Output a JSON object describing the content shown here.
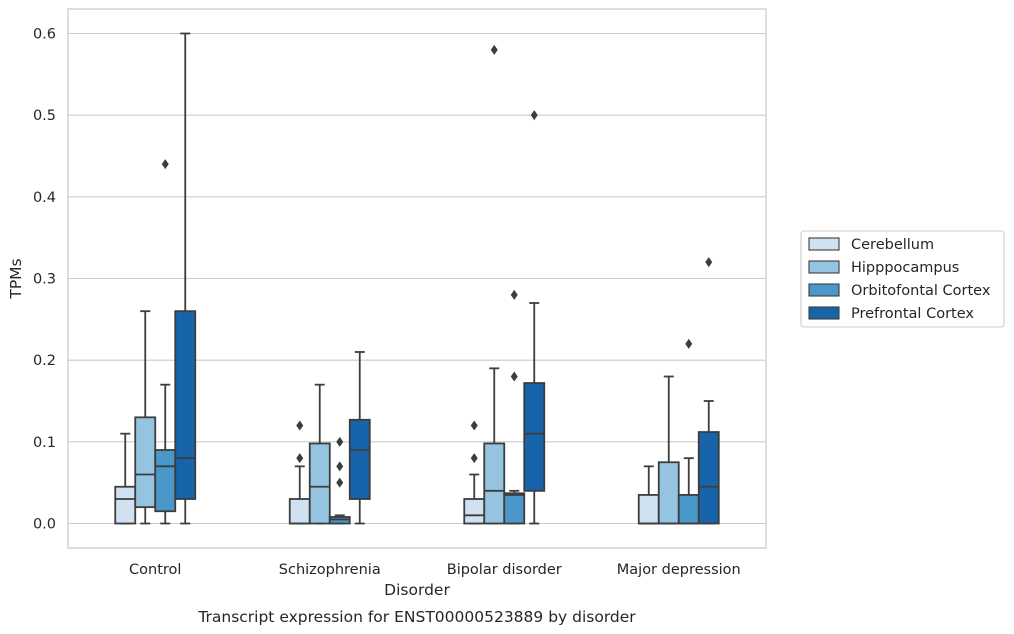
{
  "caption": "Transcript expression for ENST00000523889 by disorder",
  "chart_data": {
    "type": "box",
    "title": "",
    "xlabel": "Disorder",
    "ylabel": "TPMs",
    "ylim": [
      -0.03,
      0.63
    ],
    "yticks": [
      0.0,
      0.1,
      0.2,
      0.3,
      0.4,
      0.5,
      0.6
    ],
    "ytick_labels": [
      "0.0",
      "0.1",
      "0.2",
      "0.3",
      "0.4",
      "0.5",
      "0.6"
    ],
    "grid": true,
    "legend_position": "right",
    "categories": [
      "Control",
      "Schizophrenia",
      "Bipolar disorder",
      "Major depression"
    ],
    "series": [
      {
        "name": "Cerebellum",
        "color": "#d0e1f2",
        "boxes": [
          {
            "whislo": 0.0,
            "q1": 0.0,
            "med": 0.03,
            "q3": 0.045,
            "whishi": 0.11,
            "fliers": []
          },
          {
            "whislo": 0.0,
            "q1": 0.0,
            "med": 0.0,
            "q3": 0.03,
            "whishi": 0.07,
            "fliers": [
              0.08,
              0.12
            ]
          },
          {
            "whislo": 0.0,
            "q1": 0.0,
            "med": 0.01,
            "q3": 0.03,
            "whishi": 0.06,
            "fliers": [
              0.08,
              0.12
            ]
          },
          {
            "whislo": 0.0,
            "q1": 0.0,
            "med": 0.0,
            "q3": 0.035,
            "whishi": 0.07,
            "fliers": []
          }
        ]
      },
      {
        "name": "Hipppocampus",
        "color": "#94c4df",
        "boxes": [
          {
            "whislo": 0.0,
            "q1": 0.02,
            "med": 0.06,
            "q3": 0.13,
            "whishi": 0.26,
            "fliers": []
          },
          {
            "whislo": 0.0,
            "q1": 0.0,
            "med": 0.045,
            "q3": 0.098,
            "whishi": 0.17,
            "fliers": []
          },
          {
            "whislo": 0.0,
            "q1": 0.0,
            "med": 0.04,
            "q3": 0.098,
            "whishi": 0.19,
            "fliers": [
              0.58
            ]
          },
          {
            "whislo": 0.0,
            "q1": 0.0,
            "med": 0.0,
            "q3": 0.075,
            "whishi": 0.18,
            "fliers": []
          }
        ]
      },
      {
        "name": "Orbitofontal Cortex",
        "color": "#4a98c9",
        "boxes": [
          {
            "whislo": 0.0,
            "q1": 0.015,
            "med": 0.07,
            "q3": 0.09,
            "whishi": 0.17,
            "fliers": [
              0.44
            ]
          },
          {
            "whislo": 0.0,
            "q1": 0.0,
            "med": 0.005,
            "q3": 0.008,
            "whishi": 0.01,
            "fliers": [
              0.05,
              0.07,
              0.1
            ]
          },
          {
            "whislo": 0.0,
            "q1": 0.0,
            "med": 0.035,
            "q3": 0.037,
            "whishi": 0.04,
            "fliers": [
              0.18,
              0.28
            ]
          },
          {
            "whislo": 0.0,
            "q1": 0.0,
            "med": 0.0,
            "q3": 0.035,
            "whishi": 0.08,
            "fliers": [
              0.22
            ]
          }
        ]
      },
      {
        "name": "Prefrontal Cortex",
        "color": "#1764ab",
        "boxes": [
          {
            "whislo": 0.0,
            "q1": 0.03,
            "med": 0.08,
            "q3": 0.26,
            "whishi": 0.6,
            "fliers": []
          },
          {
            "whislo": 0.0,
            "q1": 0.03,
            "med": 0.09,
            "q3": 0.127,
            "whishi": 0.21,
            "fliers": []
          },
          {
            "whislo": 0.0,
            "q1": 0.04,
            "med": 0.11,
            "q3": 0.172,
            "whishi": 0.27,
            "fliers": [
              0.5
            ]
          },
          {
            "whislo": 0.0,
            "q1": 0.0,
            "med": 0.045,
            "q3": 0.112,
            "whishi": 0.15,
            "fliers": [
              0.32
            ]
          }
        ]
      }
    ]
  }
}
